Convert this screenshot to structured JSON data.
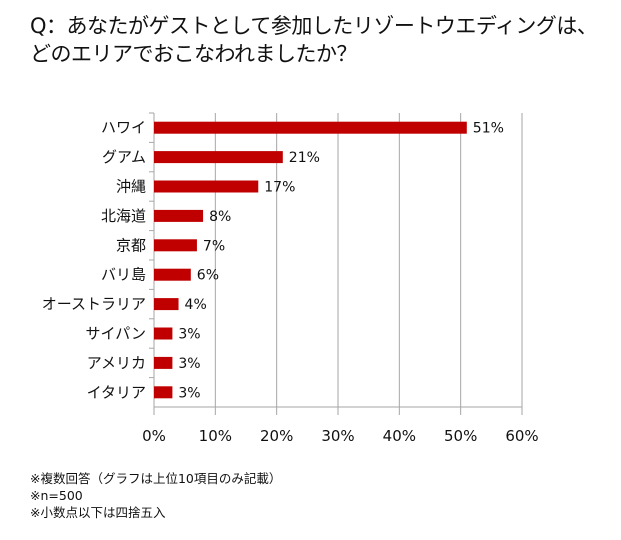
{
  "chart_data": {
    "type": "bar",
    "orientation": "horizontal",
    "title": [
      "Q：あなたがゲストとして参加したリゾートウエディングは、",
      "どのエリアでおこなわれましたか？"
    ],
    "categories": [
      "ハワイ",
      "グアム",
      "沖縄",
      "北海道",
      "京都",
      "バリ島",
      "オーストラリア",
      "サイパン",
      "アメリカ",
      "イタリア"
    ],
    "values": [
      51,
      21,
      17,
      8,
      7,
      6,
      4,
      3,
      3,
      3
    ],
    "value_labels": [
      "51%",
      "21%",
      "17%",
      "8%",
      "7%",
      "6%",
      "4%",
      "3%",
      "3%",
      "3%"
    ],
    "xlim": [
      0,
      60
    ],
    "x_ticks": [
      "0%",
      "10%",
      "20%",
      "30%",
      "40%",
      "50%",
      "60%"
    ],
    "grid": "vertical",
    "bar_color": "#c00000",
    "legend": "none",
    "notes": [
      "※複数回答（グラフは上位10項目のみ記載）",
      "※n=500",
      "※小数点以下は四捨五入"
    ]
  }
}
